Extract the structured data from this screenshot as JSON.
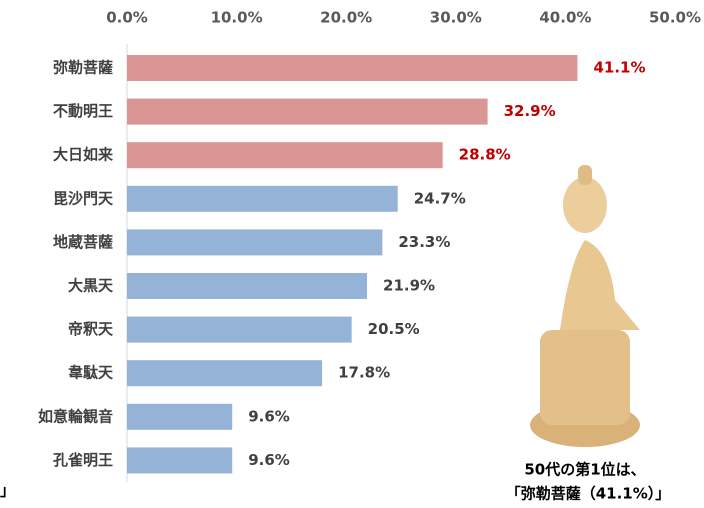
{
  "chart_data": {
    "type": "bar",
    "orientation": "horizontal",
    "categories": [
      "弥勒菩薩",
      "不動明王",
      "大日如来",
      "毘沙門天",
      "地蔵菩薩",
      "大黒天",
      "帝釈天",
      "韋駄天",
      "如意輪観音",
      "孔雀明王"
    ],
    "values": [
      41.1,
      32.9,
      28.8,
      24.7,
      23.3,
      21.9,
      20.5,
      17.8,
      9.6,
      9.6
    ],
    "value_labels": [
      "41.1%",
      "32.9%",
      "28.8%",
      "24.7%",
      "23.3%",
      "21.9%",
      "20.5%",
      "17.8%",
      "9.6%",
      "9.6%"
    ],
    "colors": [
      "#d99694",
      "#d99694",
      "#d99694",
      "#95b3d7",
      "#95b3d7",
      "#95b3d7",
      "#95b3d7",
      "#95b3d7",
      "#95b3d7",
      "#95b3d7"
    ],
    "value_label_colors": [
      "#c00000",
      "#c00000",
      "#c00000",
      "#404040",
      "#404040",
      "#404040",
      "#404040",
      "#404040",
      "#404040",
      "#404040"
    ],
    "xlim": [
      0,
      50
    ],
    "xticks": [
      {
        "value": 0,
        "label": "0.0%"
      },
      {
        "value": 10,
        "label": "10.0%"
      },
      {
        "value": 20,
        "label": "20.0%"
      },
      {
        "value": 30,
        "label": "30.0%"
      },
      {
        "value": 40,
        "label": "40.0%"
      },
      {
        "value": 50,
        "label": "50.0%"
      }
    ],
    "annotations": [
      "50代の第1位は、",
      "「弥勒菩薩（41.1%）」",
      "」"
    ]
  }
}
